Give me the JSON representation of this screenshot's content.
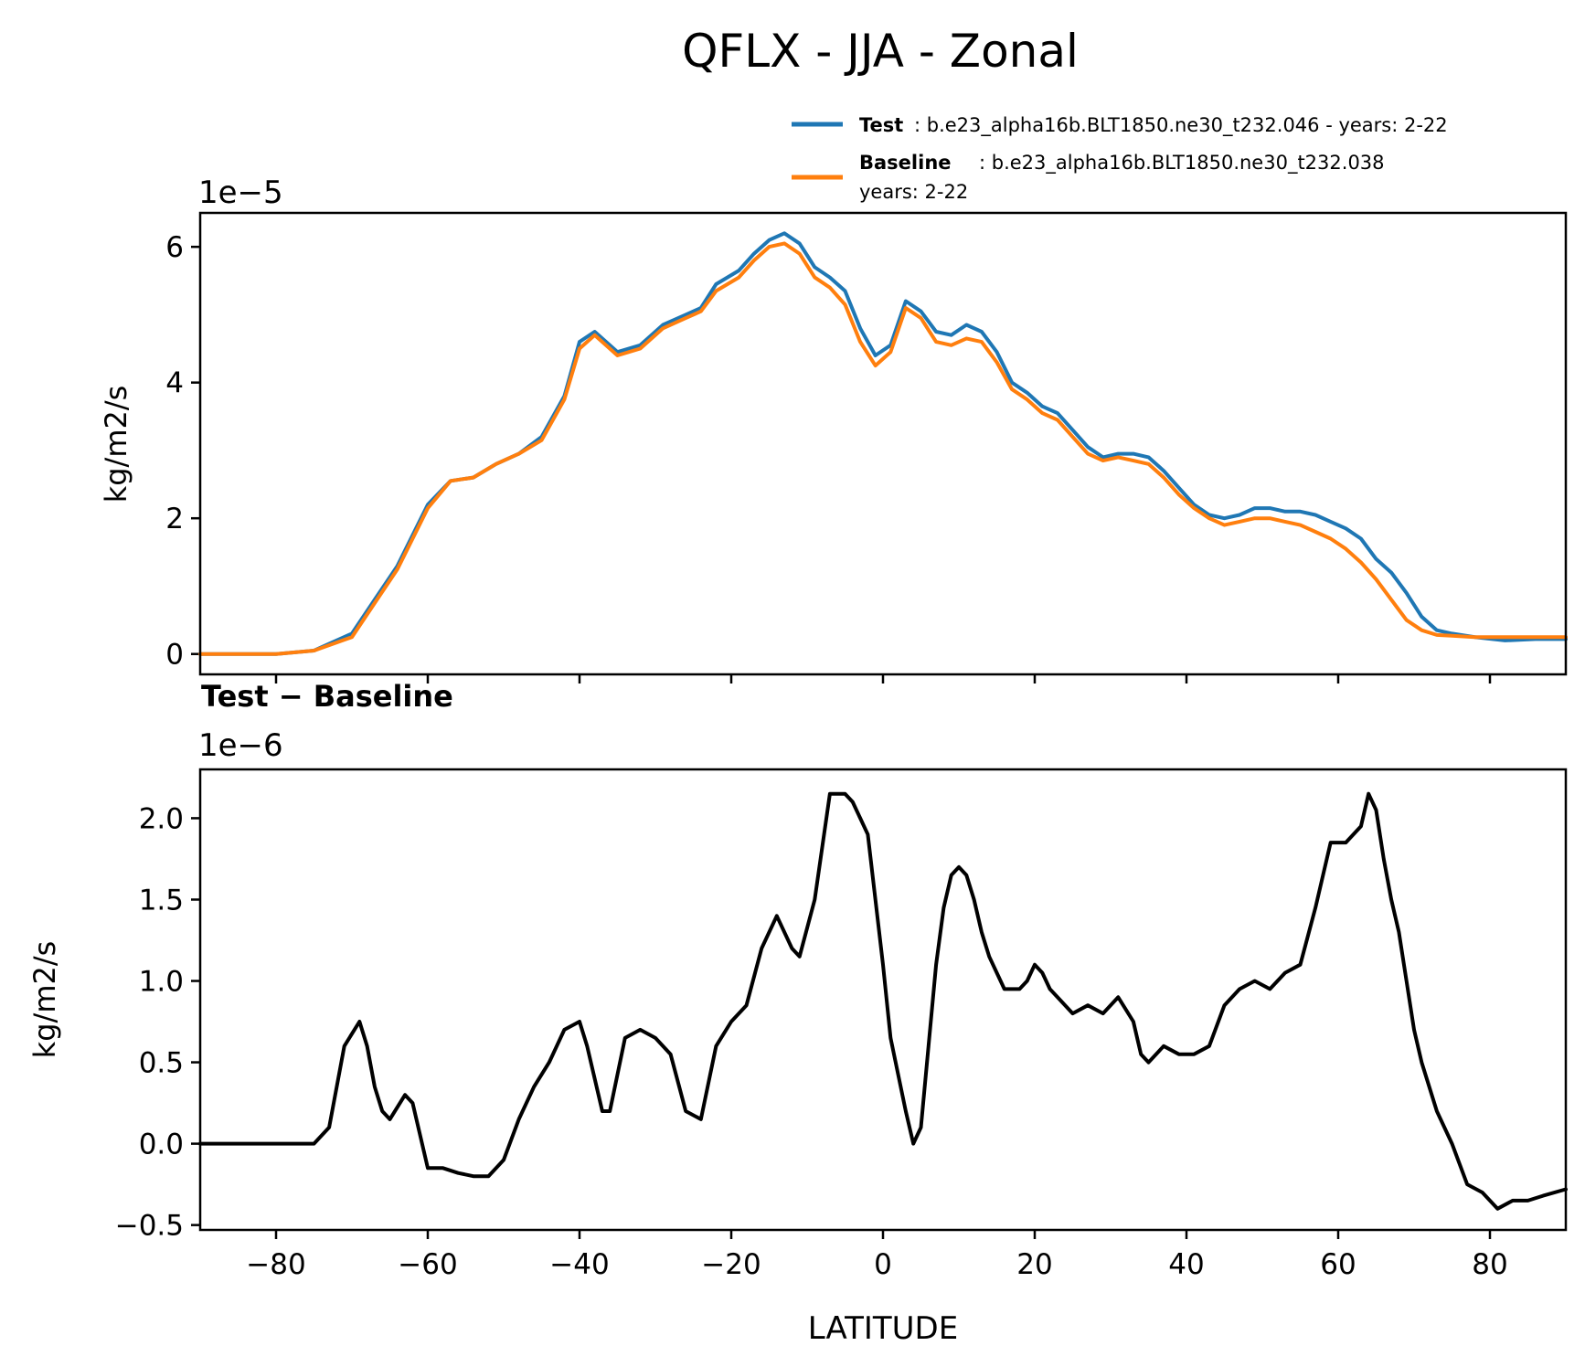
{
  "colors": {
    "test": "#1f77b4",
    "baseline": "#ff7f0e",
    "difference": "#000000"
  },
  "chart_data": [
    {
      "type": "line",
      "title": "QFLX - JJA - Zonal",
      "xlabel": "",
      "ylabel": "kg/m2/s",
      "offset_label": "1e−5",
      "xlim": [
        -90,
        90
      ],
      "ylim": [
        -0.3,
        6.5
      ],
      "yticks": [
        "0",
        "2",
        "4",
        "6"
      ],
      "legend": {
        "placement": "above-right",
        "entries": [
          {
            "name": "Test",
            "desc": ": b.e23_alpha16b.BLT1850.ne30_t232.046 - years: 2-22"
          },
          {
            "name": "Baseline",
            "desc": ": b.e23_alpha16b.BLT1850.ne30_t232.038",
            "desc2": "years: 2-22"
          }
        ]
      },
      "x": [
        -90,
        -85,
        -80,
        -75,
        -70,
        -67,
        -64,
        -60,
        -57,
        -54,
        -51,
        -48,
        -45,
        -42,
        -40,
        -38,
        -35,
        -32,
        -29,
        -26,
        -24,
        -22,
        -19,
        -17,
        -15,
        -13,
        -11,
        -9,
        -7,
        -5,
        -3,
        -1,
        1,
        3,
        5,
        7,
        9,
        11,
        13,
        15,
        17,
        19,
        21,
        23,
        25,
        27,
        29,
        31,
        33,
        35,
        37,
        39,
        41,
        43,
        45,
        47,
        49,
        51,
        53,
        55,
        57,
        59,
        61,
        63,
        65,
        67,
        69,
        71,
        73,
        75,
        78,
        82,
        86,
        90
      ],
      "series": [
        {
          "name": "Test",
          "values": [
            0.0,
            0.0,
            0.0,
            0.05,
            0.3,
            0.8,
            1.3,
            2.2,
            2.55,
            2.6,
            2.8,
            2.95,
            3.2,
            3.8,
            4.6,
            4.75,
            4.45,
            4.55,
            4.85,
            5.0,
            5.1,
            5.45,
            5.65,
            5.9,
            6.1,
            6.2,
            6.05,
            5.7,
            5.55,
            5.35,
            4.8,
            4.4,
            4.55,
            5.2,
            5.05,
            4.75,
            4.7,
            4.85,
            4.75,
            4.45,
            4.0,
            3.85,
            3.65,
            3.55,
            3.3,
            3.05,
            2.9,
            2.95,
            2.95,
            2.9,
            2.7,
            2.45,
            2.2,
            2.05,
            2.0,
            2.05,
            2.15,
            2.15,
            2.1,
            2.1,
            2.05,
            1.95,
            1.85,
            1.7,
            1.4,
            1.2,
            0.9,
            0.55,
            0.35,
            0.3,
            0.25,
            0.2,
            0.22,
            0.22
          ]
        },
        {
          "name": "Baseline",
          "values": [
            0.0,
            0.0,
            0.0,
            0.05,
            0.25,
            0.75,
            1.25,
            2.15,
            2.55,
            2.6,
            2.8,
            2.95,
            3.15,
            3.75,
            4.5,
            4.7,
            4.4,
            4.5,
            4.8,
            4.95,
            5.05,
            5.35,
            5.55,
            5.8,
            6.0,
            6.05,
            5.9,
            5.55,
            5.4,
            5.15,
            4.6,
            4.25,
            4.45,
            5.1,
            4.95,
            4.6,
            4.55,
            4.65,
            4.6,
            4.3,
            3.9,
            3.75,
            3.55,
            3.45,
            3.2,
            2.95,
            2.85,
            2.9,
            2.85,
            2.8,
            2.6,
            2.35,
            2.15,
            2.0,
            1.9,
            1.95,
            2.0,
            2.0,
            1.95,
            1.9,
            1.8,
            1.7,
            1.55,
            1.35,
            1.1,
            0.8,
            0.5,
            0.35,
            0.28,
            0.27,
            0.25,
            0.25,
            0.25,
            0.25
          ]
        }
      ]
    },
    {
      "type": "line",
      "title": "Test − Baseline",
      "xlabel": "LATITUDE",
      "ylabel": "kg/m2/s",
      "offset_label": "1e−6",
      "xlim": [
        -90,
        90
      ],
      "ylim": [
        -0.53,
        2.3
      ],
      "yticks": [
        "−0.5",
        "0.0",
        "0.5",
        "1.0",
        "1.5",
        "2.0"
      ],
      "xticks": [
        "−80",
        "−60",
        "−40",
        "−20",
        "0",
        "20",
        "40",
        "60",
        "80"
      ],
      "x": [
        -90,
        -85,
        -80,
        -75,
        -73,
        -71,
        -69,
        -68,
        -67,
        -66,
        -65,
        -63,
        -62,
        -60,
        -58,
        -56,
        -54,
        -52,
        -50,
        -48,
        -46,
        -44,
        -42,
        -40,
        -39,
        -37,
        -36,
        -34,
        -32,
        -30,
        -28,
        -26,
        -24,
        -22,
        -20,
        -18,
        -16,
        -14,
        -12,
        -11,
        -9,
        -7,
        -5,
        -4,
        -3,
        -2,
        -1,
        0,
        1,
        3,
        4,
        5,
        6,
        7,
        8,
        9,
        10,
        11,
        12,
        13,
        14,
        15,
        16,
        17,
        18,
        19,
        20,
        21,
        22,
        23,
        25,
        27,
        29,
        31,
        33,
        34,
        35,
        37,
        39,
        41,
        43,
        45,
        47,
        49,
        51,
        53,
        55,
        57,
        59,
        61,
        63,
        64,
        65,
        66,
        67,
        68,
        69,
        70,
        71,
        73,
        75,
        77,
        79,
        81,
        83,
        85,
        87,
        90
      ],
      "series": [
        {
          "name": "Test − Baseline",
          "values": [
            0.0,
            0.0,
            0.0,
            0.0,
            0.1,
            0.6,
            0.75,
            0.6,
            0.35,
            0.2,
            0.15,
            0.3,
            0.25,
            -0.15,
            -0.15,
            -0.18,
            -0.2,
            -0.2,
            -0.1,
            0.15,
            0.35,
            0.5,
            0.7,
            0.75,
            0.6,
            0.2,
            0.2,
            0.65,
            0.7,
            0.65,
            0.55,
            0.2,
            0.15,
            0.6,
            0.75,
            0.85,
            1.2,
            1.4,
            1.2,
            1.15,
            1.5,
            2.15,
            2.15,
            2.1,
            2.0,
            1.9,
            1.5,
            1.1,
            0.65,
            0.2,
            0.0,
            0.1,
            0.6,
            1.1,
            1.45,
            1.65,
            1.7,
            1.65,
            1.5,
            1.3,
            1.15,
            1.05,
            0.95,
            0.95,
            0.95,
            1.0,
            1.1,
            1.05,
            0.95,
            0.9,
            0.8,
            0.85,
            0.8,
            0.9,
            0.75,
            0.55,
            0.5,
            0.6,
            0.55,
            0.55,
            0.6,
            0.85,
            0.95,
            1.0,
            0.95,
            1.05,
            1.1,
            1.45,
            1.85,
            1.85,
            1.95,
            2.15,
            2.05,
            1.75,
            1.5,
            1.3,
            1.0,
            0.7,
            0.5,
            0.2,
            0.0,
            -0.25,
            -0.3,
            -0.4,
            -0.35,
            -0.35,
            -0.32,
            -0.28
          ]
        }
      ]
    }
  ]
}
